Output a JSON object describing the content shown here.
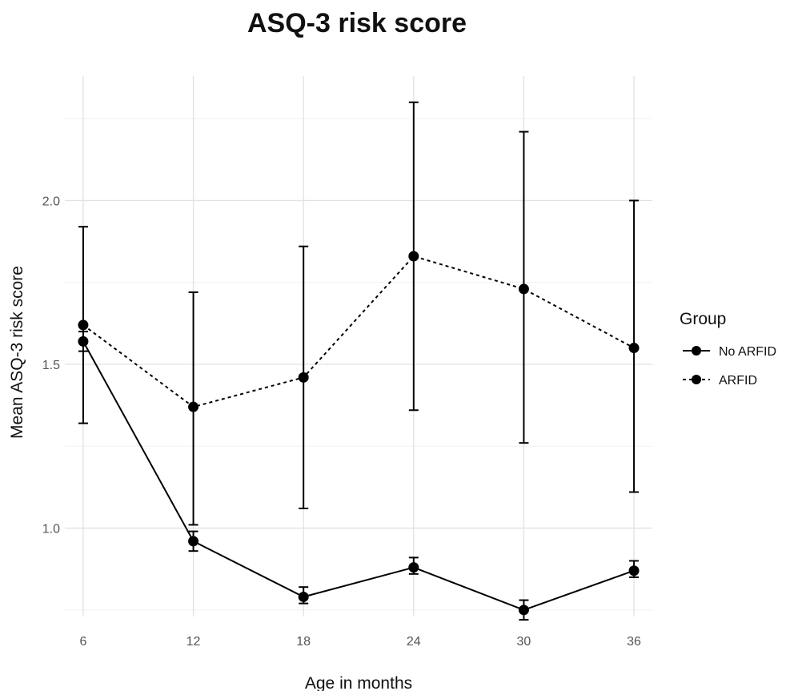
{
  "chart_data": {
    "type": "line",
    "title": "ASQ-3 risk score",
    "xlabel": "Age in months",
    "ylabel": "Mean ASQ-3 risk score",
    "x": [
      6,
      12,
      18,
      24,
      30,
      36
    ],
    "x_tick_labels": [
      "6",
      "12",
      "18",
      "24",
      "30",
      "36"
    ],
    "xlim": [
      5,
      37
    ],
    "ylim": [
      0.73,
      2.38
    ],
    "y_ticks": [
      1.0,
      1.5,
      2.0
    ],
    "y_tick_labels": [
      "1.0",
      "1.5",
      "2.0"
    ],
    "y_minor_ticks": [
      0.75,
      1.25,
      1.75,
      2.25
    ],
    "grid": true,
    "legend": {
      "title": "Group",
      "position": "right"
    },
    "series": [
      {
        "name": "No ARFID",
        "line_style": "solid",
        "color": "#000000",
        "values": [
          1.57,
          0.96,
          0.79,
          0.88,
          0.75,
          0.87
        ],
        "error_lower": [
          1.54,
          0.93,
          0.77,
          0.86,
          0.72,
          0.85
        ],
        "error_upper": [
          1.6,
          0.99,
          0.82,
          0.91,
          0.78,
          0.9
        ]
      },
      {
        "name": "ARFID",
        "line_style": "dashed",
        "color": "#000000",
        "values": [
          1.62,
          1.37,
          1.46,
          1.83,
          1.73,
          1.55
        ],
        "error_lower": [
          1.32,
          1.01,
          1.06,
          1.36,
          1.26,
          1.11
        ],
        "error_upper": [
          1.92,
          1.72,
          1.86,
          2.3,
          2.21,
          2.0
        ]
      }
    ]
  }
}
